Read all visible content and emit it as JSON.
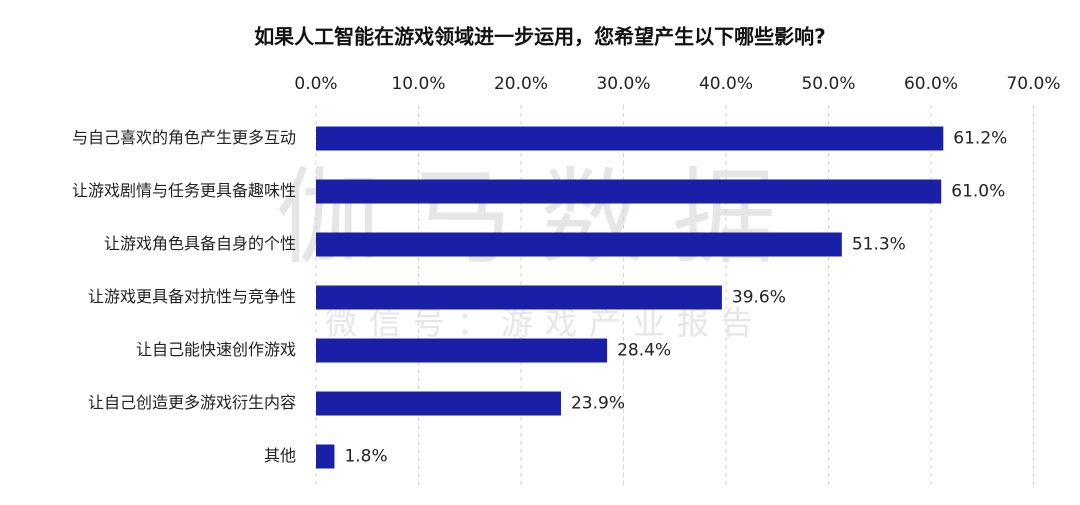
{
  "chart_data": {
    "type": "barh",
    "title": "如果人工智能在游戏领域进一步运用，您希望产生以下哪些影响?",
    "watermark": "伽马数据",
    "watermark_subtitle": "微信号：游戏产业报告",
    "categories": [
      "与自己喜欢的角色产生更多互动",
      "让游戏剧情与任务更具备趣味性",
      "让游戏角色具备自身的个性",
      "让游戏更具备对抗性与竞争性",
      "让自己能快速创作游戏",
      "让自己创造更多游戏衍生内容",
      "其他"
    ],
    "values": [
      61.2,
      61.0,
      51.3,
      39.6,
      28.4,
      23.9,
      1.8
    ],
    "value_labels": [
      "61.2%",
      "61.0%",
      "51.3%",
      "39.6%",
      "28.4%",
      "23.9%",
      "1.8%"
    ],
    "color": "#1a1fa8",
    "xlim": [
      0,
      70
    ],
    "xticks": [
      {
        "value": 0,
        "label": "0.0%"
      },
      {
        "value": 10,
        "label": "10.0%"
      },
      {
        "value": 20,
        "label": "20.0%"
      },
      {
        "value": 30,
        "label": "30.0%"
      },
      {
        "value": 40,
        "label": "40.0%"
      },
      {
        "value": 50,
        "label": "50.0%"
      },
      {
        "value": 60,
        "label": "60.0%"
      },
      {
        "value": 70,
        "label": "70.0%"
      }
    ],
    "grid": true
  }
}
